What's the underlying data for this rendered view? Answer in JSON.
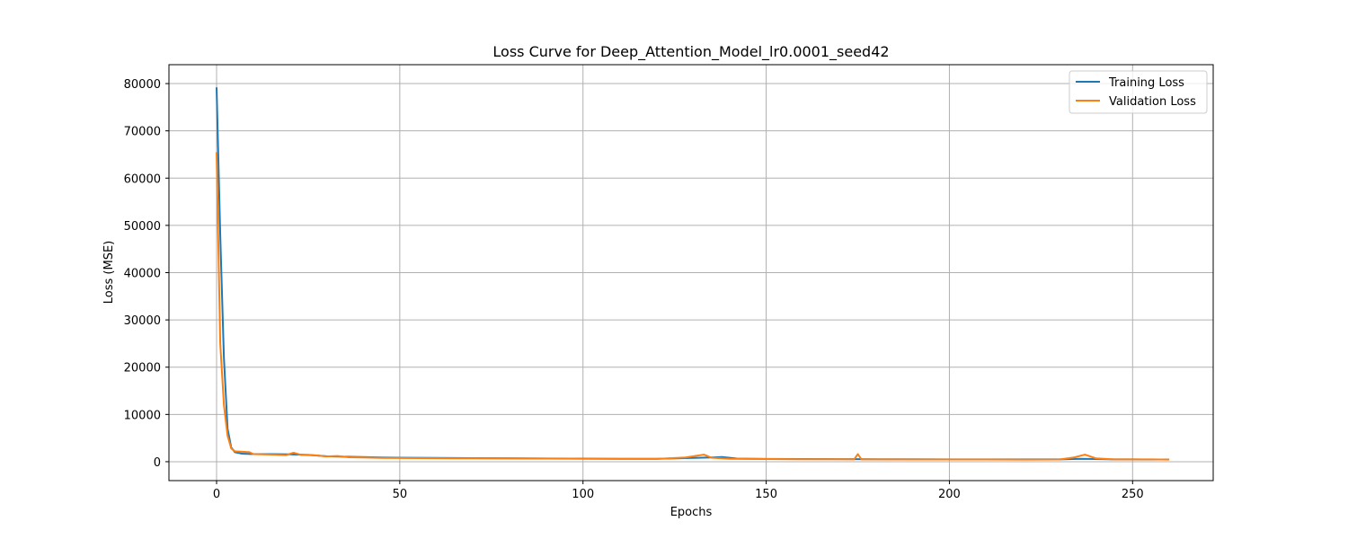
{
  "chart_data": {
    "type": "line",
    "title": "Loss Curve for Deep_Attention_Model_lr0.0001_seed42",
    "xlabel": "Epochs",
    "ylabel": "Loss (MSE)",
    "xlim": [
      -13,
      272
    ],
    "ylim": [
      -4000,
      84000
    ],
    "xticks": [
      0,
      50,
      100,
      150,
      200,
      250
    ],
    "yticks": [
      0,
      10000,
      20000,
      30000,
      40000,
      50000,
      60000,
      70000,
      80000
    ],
    "grid": true,
    "legend_position": "top-right",
    "series": [
      {
        "name": "Training Loss",
        "color": "#1f77b4",
        "points": [
          [
            0,
            79200
          ],
          [
            1,
            48000
          ],
          [
            2,
            22000
          ],
          [
            3,
            7000
          ],
          [
            4,
            3000
          ],
          [
            5,
            2000
          ],
          [
            7,
            1700
          ],
          [
            10,
            1600
          ],
          [
            15,
            1600
          ],
          [
            20,
            1550
          ],
          [
            25,
            1450
          ],
          [
            30,
            1150
          ],
          [
            35,
            1050
          ],
          [
            40,
            1000
          ],
          [
            45,
            900
          ],
          [
            50,
            850
          ],
          [
            60,
            800
          ],
          [
            70,
            750
          ],
          [
            80,
            720
          ],
          [
            90,
            680
          ],
          [
            100,
            650
          ],
          [
            110,
            620
          ],
          [
            120,
            600
          ],
          [
            130,
            800
          ],
          [
            135,
            900
          ],
          [
            138,
            1000
          ],
          [
            142,
            650
          ],
          [
            150,
            580
          ],
          [
            160,
            550
          ],
          [
            170,
            540
          ],
          [
            175,
            530
          ],
          [
            180,
            520
          ],
          [
            190,
            510
          ],
          [
            200,
            500
          ],
          [
            210,
            500
          ],
          [
            220,
            490
          ],
          [
            230,
            490
          ],
          [
            236,
            600
          ],
          [
            240,
            550
          ],
          [
            245,
            480
          ],
          [
            250,
            480
          ],
          [
            255,
            470
          ],
          [
            260,
            460
          ]
        ]
      },
      {
        "name": "Validation Loss",
        "color": "#ff7f0e",
        "points": [
          [
            0,
            65500
          ],
          [
            1,
            25000
          ],
          [
            2,
            12000
          ],
          [
            3,
            5500
          ],
          [
            4,
            2800
          ],
          [
            5,
            2200
          ],
          [
            7,
            2100
          ],
          [
            9,
            2000
          ],
          [
            10,
            1600
          ],
          [
            15,
            1500
          ],
          [
            19,
            1400
          ],
          [
            21,
            1900
          ],
          [
            23,
            1450
          ],
          [
            27,
            1350
          ],
          [
            30,
            1100
          ],
          [
            33,
            1200
          ],
          [
            36,
            950
          ],
          [
            40,
            900
          ],
          [
            45,
            800
          ],
          [
            50,
            780
          ],
          [
            60,
            720
          ],
          [
            70,
            700
          ],
          [
            80,
            680
          ],
          [
            90,
            650
          ],
          [
            100,
            620
          ],
          [
            110,
            600
          ],
          [
            120,
            580
          ],
          [
            128,
            900
          ],
          [
            133,
            1500
          ],
          [
            135,
            850
          ],
          [
            140,
            600
          ],
          [
            150,
            550
          ],
          [
            160,
            520
          ],
          [
            170,
            520
          ],
          [
            174,
            480
          ],
          [
            175,
            1600
          ],
          [
            176,
            500
          ],
          [
            180,
            480
          ],
          [
            190,
            470
          ],
          [
            200,
            460
          ],
          [
            210,
            460
          ],
          [
            220,
            450
          ],
          [
            230,
            460
          ],
          [
            234,
            900
          ],
          [
            237,
            1500
          ],
          [
            240,
            700
          ],
          [
            245,
            500
          ],
          [
            250,
            500
          ],
          [
            255,
            480
          ],
          [
            260,
            450
          ]
        ]
      }
    ]
  }
}
